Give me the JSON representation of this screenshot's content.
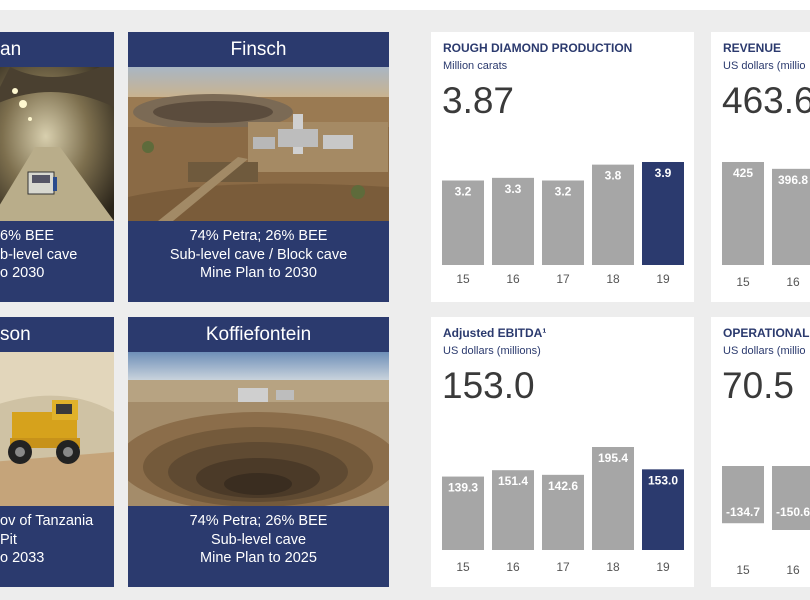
{
  "mines": [
    {
      "name": "Cullinan",
      "title_visible": "an",
      "lines": [
        "6% BEE",
        "b-level cave",
        "o 2030"
      ]
    },
    {
      "name": "Finsch",
      "title_visible": "Finsch",
      "lines": [
        "74% Petra; 26% BEE",
        "Sub-level cave / Block cave",
        "Mine Plan to 2030"
      ]
    },
    {
      "name": "Williamson",
      "title_visible": "son",
      "lines": [
        "ov of Tanzania",
        "Pit",
        "o 2033"
      ]
    },
    {
      "name": "Koffiefontein",
      "title_visible": "Koffiefontein",
      "lines": [
        "74% Petra; 26% BEE",
        "Sub-level cave",
        "Mine Plan to 2025"
      ]
    }
  ],
  "colors": {
    "navy": "#2b3a6e",
    "gray_bar": "#a6a6a6",
    "panel_bg": "#ededed"
  },
  "kpis": [
    {
      "title": "ROUGH DIAMOND PRODUCTION",
      "unit": "Million carats",
      "value": "3.87"
    },
    {
      "title": "REVENUE",
      "unit": "US dollars (millio",
      "value": "463.6"
    },
    {
      "title": "Adjusted EBITDA¹",
      "unit": "US dollars (millions)",
      "value": "153.0"
    },
    {
      "title": "OPERATIONAL",
      "unit": "US dollars (millio",
      "value": "70.5"
    }
  ],
  "chart_data": [
    {
      "type": "bar",
      "title": "ROUGH DIAMOND PRODUCTION",
      "categories": [
        "15",
        "16",
        "17",
        "18",
        "19"
      ],
      "values": [
        3.2,
        3.3,
        3.2,
        3.8,
        3.9
      ],
      "labels": [
        "3.2",
        "3.3",
        "3.2",
        "3.8",
        "3.9"
      ],
      "highlight_index": 4
    },
    {
      "type": "bar",
      "title": "REVENUE",
      "categories": [
        "15",
        "16"
      ],
      "values": [
        425,
        396.8
      ],
      "labels": [
        "425",
        "396.8"
      ],
      "highlight_index": -1
    },
    {
      "type": "bar",
      "title": "Adjusted EBITDA¹",
      "categories": [
        "15",
        "16",
        "17",
        "18",
        "19"
      ],
      "values": [
        139.3,
        151.4,
        142.6,
        195.4,
        153.0
      ],
      "labels": [
        "139.3",
        "151.4",
        "142.6",
        "195.4",
        "153.0"
      ],
      "highlight_index": 4
    },
    {
      "type": "bar",
      "title": "OPERATIONAL",
      "categories": [
        "15",
        "16"
      ],
      "values": [
        -134.7,
        -150.6
      ],
      "labels": [
        "-134.7",
        "-150.6"
      ],
      "highlight_index": -1
    }
  ]
}
